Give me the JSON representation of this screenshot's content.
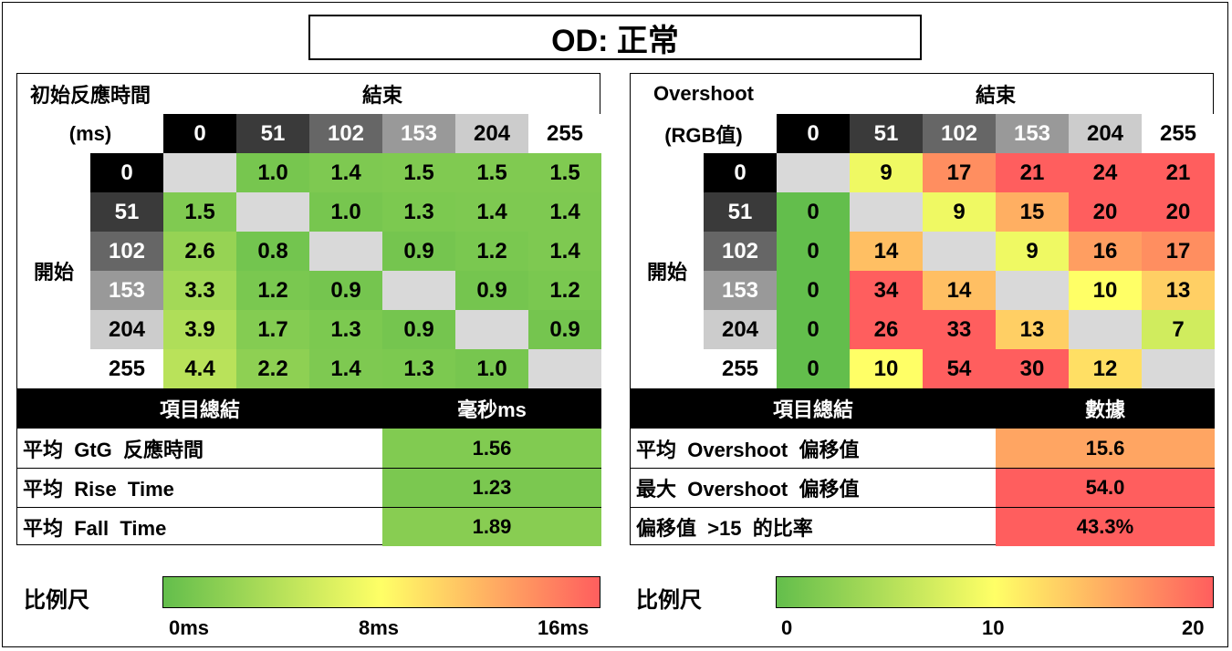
{
  "title": "OD:  正常",
  "response_panel": {
    "corner_label_1": "初始反應時間",
    "corner_label_2": "(ms)",
    "end_label": "結束",
    "start_label": "開始",
    "levels": [
      "0",
      "51",
      "102",
      "153",
      "204",
      "255"
    ],
    "summary_header": "項目總結",
    "summary_value_header": "毫秒ms",
    "summary": [
      {
        "label": "平均  GtG  反應時間",
        "value": "1.56"
      },
      {
        "label": "平均  Rise  Time",
        "value": "1.23"
      },
      {
        "label": "平均  Fall  Time",
        "value": "1.89"
      }
    ],
    "scale_label": "比例尺",
    "scale_ticks": [
      "0ms",
      "8ms",
      "16ms"
    ]
  },
  "overshoot_panel": {
    "corner_label_1": "Overshoot",
    "corner_label_2": "(RGB值)",
    "end_label": "結束",
    "start_label": "開始",
    "levels": [
      "0",
      "51",
      "102",
      "153",
      "204",
      "255"
    ],
    "summary_header": "項目總結",
    "summary_value_header": "數據",
    "summary": [
      {
        "label": "平均  Overshoot  偏移值",
        "value": "15.6"
      },
      {
        "label": "最大  Overshoot  偏移值",
        "value": "54.0"
      },
      {
        "label": "偏移值  >15  的比率",
        "value": "43.3%"
      }
    ],
    "scale_label": "比例尺",
    "scale_ticks": [
      "0",
      "10",
      "20"
    ]
  },
  "colors": {
    "green": "#63be4c",
    "yellow": "#ffff66",
    "red": "#ff5e5e",
    "diagonal": "#d9d9d9"
  },
  "chart_data": [
    {
      "type": "heatmap",
      "row_label": "開始",
      "column_label": "結束",
      "rows": [
        "0",
        "51",
        "102",
        "153",
        "204",
        "255"
      ],
      "columns": [
        "0",
        "51",
        "102",
        "153",
        "204",
        "255"
      ],
      "values": [
        [
          null,
          1.0,
          1.4,
          1.5,
          1.5,
          1.5
        ],
        [
          1.5,
          null,
          1.0,
          1.3,
          1.4,
          1.4
        ],
        [
          2.6,
          0.8,
          null,
          0.9,
          1.2,
          1.4
        ],
        [
          3.3,
          1.2,
          0.9,
          null,
          0.9,
          1.2
        ],
        [
          3.9,
          1.7,
          1.3,
          0.9,
          null,
          0.9
        ],
        [
          4.4,
          2.2,
          1.4,
          1.3,
          1.0,
          null
        ]
      ],
      "scale": [
        0,
        16
      ]
    },
    {
      "type": "heatmap",
      "row_label": "開始",
      "column_label": "結束",
      "rows": [
        "0",
        "51",
        "102",
        "153",
        "204",
        "255"
      ],
      "columns": [
        "0",
        "51",
        "102",
        "153",
        "204",
        "255"
      ],
      "values": [
        [
          null,
          9,
          17,
          21,
          24,
          21
        ],
        [
          0,
          null,
          9,
          15,
          20,
          20
        ],
        [
          0,
          14,
          null,
          9,
          16,
          17
        ],
        [
          0,
          34,
          14,
          null,
          10,
          13
        ],
        [
          0,
          26,
          33,
          13,
          null,
          7
        ],
        [
          0,
          10,
          54,
          30,
          12,
          null
        ]
      ],
      "scale": [
        0,
        20
      ]
    }
  ]
}
